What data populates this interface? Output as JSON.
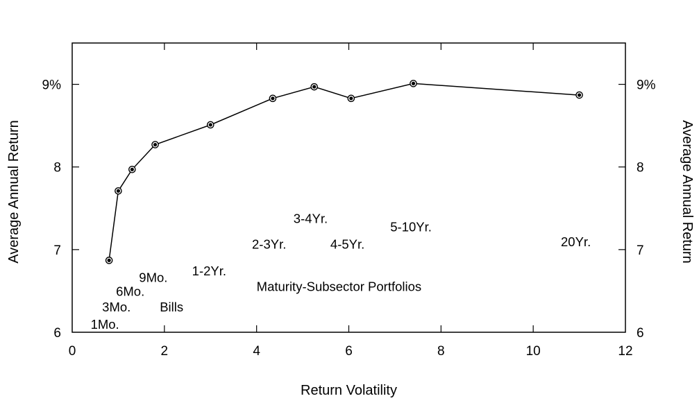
{
  "chart_data": {
    "type": "line",
    "title": "",
    "xlabel": "Return Volatility",
    "ylabel_left": "Average Annual Return",
    "ylabel_right": "Average Annual Return",
    "xlim": [
      0,
      12
    ],
    "ylim": [
      6,
      9.5
    ],
    "x_ticks": [
      {
        "value": 0,
        "label": "0"
      },
      {
        "value": 2,
        "label": "2"
      },
      {
        "value": 4,
        "label": "4"
      },
      {
        "value": 6,
        "label": "6"
      },
      {
        "value": 8,
        "label": "8"
      },
      {
        "value": 10,
        "label": "10"
      },
      {
        "value": 12,
        "label": "12"
      }
    ],
    "y_ticks": [
      {
        "value": 6,
        "label": "6"
      },
      {
        "value": 7,
        "label": "7"
      },
      {
        "value": 8,
        "label": "8"
      },
      {
        "value": 9,
        "label": "9%"
      }
    ],
    "grid": false,
    "series": [
      {
        "points": [
          {
            "x": 0.8,
            "y": 6.87
          },
          {
            "x": 1.0,
            "y": 7.71
          },
          {
            "x": 1.3,
            "y": 7.97
          },
          {
            "x": 1.8,
            "y": 8.27
          },
          {
            "x": 3.0,
            "y": 8.51
          },
          {
            "x": 4.35,
            "y": 8.83
          },
          {
            "x": 5.25,
            "y": 8.97
          },
          {
            "x": 6.05,
            "y": 8.83
          },
          {
            "x": 7.4,
            "y": 9.01
          },
          {
            "x": 11.0,
            "y": 8.87
          }
        ]
      }
    ],
    "annotations": [
      {
        "text": "1Mo.",
        "x": 0.4,
        "y": 6.04
      },
      {
        "text": "3Mo.",
        "x": 0.65,
        "y": 6.25
      },
      {
        "text": "6Mo.",
        "x": 0.95,
        "y": 6.44
      },
      {
        "text": "9Mo.",
        "x": 1.45,
        "y": 6.61
      },
      {
        "text": "Bills",
        "x": 1.9,
        "y": 6.25
      },
      {
        "text": "1-2Yr.",
        "x": 2.6,
        "y": 6.69
      },
      {
        "text": "2-3Yr.",
        "x": 3.9,
        "y": 7.01
      },
      {
        "text": "3-4Yr.",
        "x": 4.8,
        "y": 7.32
      },
      {
        "text": "4-5Yr.",
        "x": 5.6,
        "y": 7.01
      },
      {
        "text": "5-10Yr.",
        "x": 6.9,
        "y": 7.22
      },
      {
        "text": "20Yr.",
        "x": 10.6,
        "y": 7.04
      },
      {
        "text": "Maturity-Subsector Portfolios",
        "x": 4.0,
        "y": 6.5
      }
    ]
  }
}
